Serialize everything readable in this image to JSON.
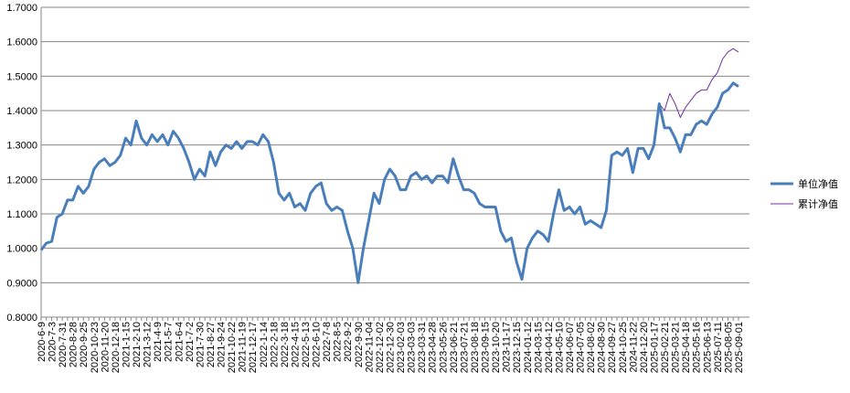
{
  "chart_data": {
    "type": "line",
    "categories": [
      "2020-6-9",
      null,
      "2020-7-3",
      null,
      "2020-7-31",
      null,
      "2020-8-28",
      null,
      "2020-9-25",
      null,
      "2020-10-23",
      null,
      "2020-11-20",
      null,
      "2020-12-18",
      null,
      "2021-1-15",
      null,
      "2021-2-10",
      null,
      "2021-3-12",
      null,
      "2021-4-9",
      null,
      "2021-5-7",
      null,
      "2021-6-4",
      null,
      "2021-7-2",
      null,
      "2021-7-30",
      null,
      "2021-8-27",
      null,
      "2021-9-24",
      null,
      "2021-10-22",
      null,
      "2021-11-19",
      null,
      "2021-12-17",
      null,
      "2022-1-14",
      null,
      "2022-2-18",
      null,
      "2022-3-18",
      null,
      "2022-4-15",
      null,
      "2022-5-13",
      null,
      "2022-6-10",
      null,
      "2022-7-8",
      null,
      "2022-8-5",
      null,
      "2022-9-2",
      null,
      "2022-9-30",
      null,
      "2022-11-04",
      null,
      "2022-12-02",
      null,
      "2022-12-30",
      null,
      "2023-02-03",
      null,
      "2023-03-03",
      null,
      "2023-03-31",
      null,
      "2023-04-28",
      null,
      "2023-05-26",
      null,
      "2023-06-21",
      null,
      "2023-07-21",
      null,
      "2023-08-18",
      null,
      "2023-09-15",
      null,
      "2023-10-20",
      null,
      "2023-11-17",
      null,
      "2023-12-15",
      null,
      "2024-01-12",
      null,
      "2024-03-15",
      null,
      "2024-04-12",
      null,
      "2024-05-10",
      null,
      "2024-06-07",
      null,
      "2024-07-05",
      null,
      "2024-08-02",
      null,
      "2024-08-30",
      null,
      "2024-09-27",
      null,
      "2024-10-25",
      null,
      "2024-11-22",
      null,
      "2024-12-20",
      null,
      "2025-01-17",
      null,
      "2025-02-21",
      null,
      "2025-03-21",
      null,
      "2025-04-18",
      null,
      "2025-05-16",
      null,
      "2025-06-13",
      null,
      "2025-07-11",
      null,
      "2025-08-05",
      null,
      "2025-09-01"
    ],
    "series": [
      {
        "name": "单位净值",
        "color": "#4a7ebb",
        "values": [
          0.995,
          1.015,
          1.02,
          1.09,
          1.1,
          1.14,
          1.14,
          1.18,
          1.16,
          1.18,
          1.23,
          1.25,
          1.26,
          1.24,
          1.25,
          1.27,
          1.32,
          1.3,
          1.37,
          1.32,
          1.3,
          1.33,
          1.31,
          1.33,
          1.3,
          1.34,
          1.32,
          1.29,
          1.25,
          1.2,
          1.23,
          1.21,
          1.28,
          1.24,
          1.28,
          1.3,
          1.29,
          1.31,
          1.29,
          1.31,
          1.31,
          1.3,
          1.33,
          1.31,
          1.25,
          1.16,
          1.14,
          1.16,
          1.12,
          1.13,
          1.11,
          1.16,
          1.18,
          1.19,
          1.13,
          1.11,
          1.12,
          1.11,
          1.05,
          1.0,
          0.9,
          1.0,
          1.08,
          1.16,
          1.13,
          1.2,
          1.23,
          1.21,
          1.17,
          1.17,
          1.21,
          1.22,
          1.2,
          1.21,
          1.19,
          1.21,
          1.21,
          1.19,
          1.26,
          1.21,
          1.17,
          1.17,
          1.16,
          1.13,
          1.12,
          1.12,
          1.12,
          1.05,
          1.02,
          1.03,
          0.96,
          0.91,
          1.0,
          1.03,
          1.05,
          1.04,
          1.02,
          1.1,
          1.17,
          1.11,
          1.12,
          1.1,
          1.12,
          1.07,
          1.08,
          1.07,
          1.06,
          1.11,
          1.27,
          1.28,
          1.27,
          1.29,
          1.22,
          1.29,
          1.29,
          1.26,
          1.3,
          1.42,
          1.35,
          1.35,
          1.32,
          1.28,
          1.33,
          1.33,
          1.36,
          1.37,
          1.36,
          1.39,
          1.41,
          1.45,
          1.46,
          1.48,
          1.47
        ]
      },
      {
        "name": "累计净值",
        "color": "#7030a0",
        "values": [
          0.995,
          1.015,
          1.02,
          1.09,
          1.1,
          1.14,
          1.14,
          1.18,
          1.16,
          1.18,
          1.23,
          1.25,
          1.26,
          1.24,
          1.25,
          1.27,
          1.32,
          1.3,
          1.37,
          1.32,
          1.3,
          1.33,
          1.31,
          1.33,
          1.3,
          1.34,
          1.32,
          1.29,
          1.25,
          1.2,
          1.23,
          1.21,
          1.28,
          1.24,
          1.28,
          1.3,
          1.29,
          1.31,
          1.29,
          1.31,
          1.31,
          1.3,
          1.33,
          1.31,
          1.25,
          1.16,
          1.14,
          1.16,
          1.12,
          1.13,
          1.11,
          1.16,
          1.18,
          1.19,
          1.13,
          1.11,
          1.12,
          1.11,
          1.05,
          1.0,
          0.9,
          1.0,
          1.08,
          1.16,
          1.13,
          1.2,
          1.23,
          1.21,
          1.17,
          1.17,
          1.21,
          1.22,
          1.2,
          1.21,
          1.19,
          1.21,
          1.21,
          1.19,
          1.26,
          1.21,
          1.17,
          1.17,
          1.16,
          1.13,
          1.12,
          1.12,
          1.12,
          1.05,
          1.02,
          1.03,
          0.96,
          0.91,
          1.0,
          1.03,
          1.05,
          1.04,
          1.02,
          1.1,
          1.17,
          1.11,
          1.12,
          1.1,
          1.12,
          1.07,
          1.08,
          1.07,
          1.06,
          1.11,
          1.27,
          1.28,
          1.27,
          1.29,
          1.22,
          1.29,
          1.29,
          1.26,
          1.3,
          1.42,
          1.4,
          1.45,
          1.42,
          1.38,
          1.41,
          1.43,
          1.45,
          1.46,
          1.46,
          1.49,
          1.51,
          1.55,
          1.57,
          1.58,
          1.57
        ]
      }
    ],
    "ylim": [
      0.8,
      1.7
    ],
    "yticks": [
      {
        "value": 0.8,
        "label": "0.8000"
      },
      {
        "value": 0.9,
        "label": "0.9000"
      },
      {
        "value": 1.0,
        "label": "1.0000"
      },
      {
        "value": 1.1,
        "label": "1.1000"
      },
      {
        "value": 1.2,
        "label": "1.2000"
      },
      {
        "value": 1.3,
        "label": "1.3000"
      },
      {
        "value": 1.4,
        "label": "1.4000"
      },
      {
        "value": 1.5,
        "label": "1.5000"
      },
      {
        "value": 1.6,
        "label": "1.6000"
      },
      {
        "value": 1.7,
        "label": "1.7000"
      }
    ],
    "grid": true,
    "legend": "right"
  }
}
